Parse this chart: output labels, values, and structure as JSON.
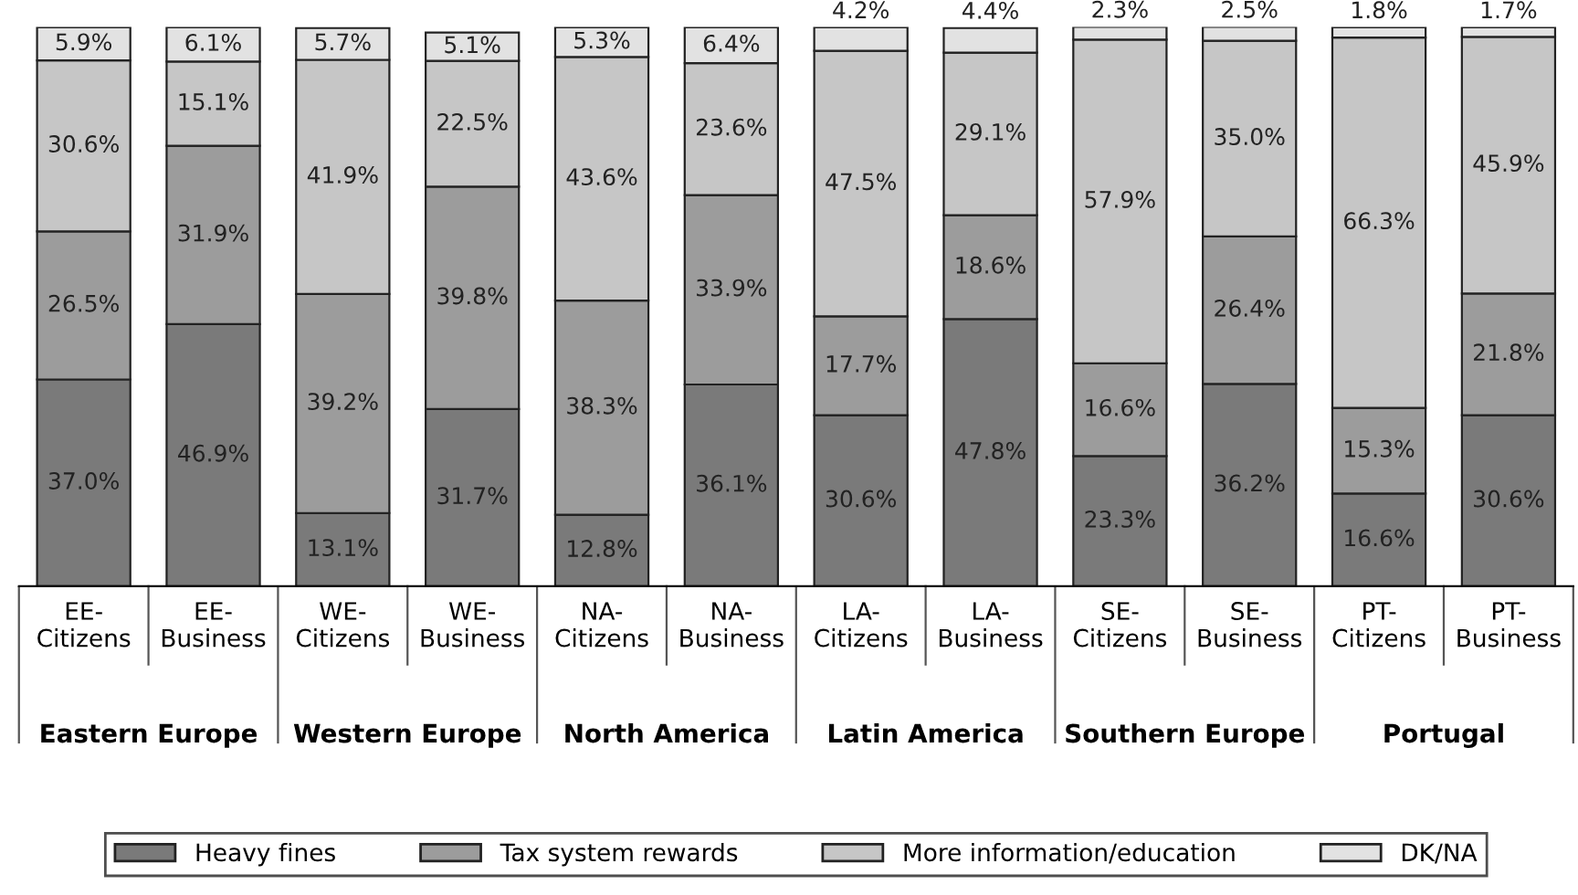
{
  "chart_data": {
    "type": "bar",
    "stacked": true,
    "legend": "bottom",
    "grid": false,
    "categories": [
      "EE-\nCitizens",
      "EE-\nBusiness",
      "WE-\nCitizens",
      "WE-\nBusiness",
      "NA-\nCitizens",
      "NA-\nBusiness",
      "LA-\nCitizens",
      "LA-\nBusiness",
      "SE-\nCitizens",
      "SE-\nBusiness",
      "PT-\nCitizens",
      "PT-\nBusiness"
    ],
    "annotations": [
      "Eastern Europe",
      "Western Europe",
      "North America",
      "Latin America",
      "Southern Europe",
      "Portugal"
    ],
    "series": [
      {
        "name": "Heavy fines",
        "color": "#7a7a7a",
        "values": [
          37.0,
          46.9,
          13.1,
          31.7,
          12.8,
          36.1,
          30.6,
          47.8,
          23.3,
          36.2,
          16.6,
          30.6
        ],
        "value_labels": [
          "37.0%",
          "46.9%",
          "13.1%",
          "31.7%",
          "12.8%",
          "36.1%",
          "30.6%",
          "47.8%",
          "23.3%",
          "36.2%",
          "16.6%",
          "30.6%"
        ]
      },
      {
        "name": "Tax system rewards",
        "color": "#9c9c9c",
        "values": [
          26.5,
          31.9,
          39.2,
          39.8,
          38.3,
          33.9,
          17.7,
          18.6,
          16.6,
          26.4,
          15.3,
          21.8
        ],
        "value_labels": [
          "26.5%",
          "31.9%",
          "39.2%",
          "39.8%",
          "38.3%",
          "33.9%",
          "17.7%",
          "18.6%",
          "16.6%",
          "26.4%",
          "15.3%",
          "21.8%"
        ]
      },
      {
        "name": "More information/education",
        "color": "#c6c6c6",
        "values": [
          30.6,
          15.1,
          41.9,
          22.5,
          43.6,
          23.6,
          47.5,
          29.1,
          57.9,
          35.0,
          66.3,
          45.9
        ],
        "value_labels": [
          "30.6%",
          "15.1%",
          "41.9%",
          "22.5%",
          "43.6%",
          "23.6%",
          "47.5%",
          "29.1%",
          "57.9%",
          "35.0%",
          "66.3%",
          "45.9%"
        ]
      },
      {
        "name": "DK/NA",
        "color": "#e2e2e2",
        "values": [
          5.9,
          6.1,
          5.7,
          5.1,
          5.3,
          6.4,
          4.2,
          4.4,
          2.3,
          2.5,
          1.8,
          1.7
        ],
        "value_labels": [
          "5.9%",
          "6.1%",
          "5.7%",
          "5.1%",
          "5.3%",
          "6.4%",
          "4.2%",
          "4.4%",
          "2.3%",
          "2.5%",
          "1.8%",
          "1.7%"
        ]
      }
    ]
  }
}
